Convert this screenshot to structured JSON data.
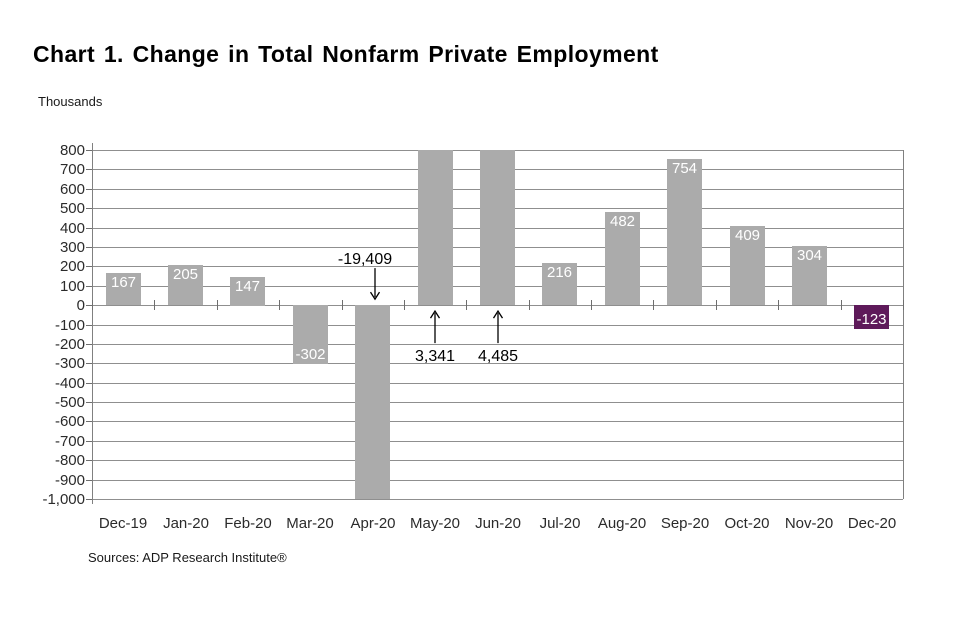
{
  "header": {
    "title": "Chart 1. Change in Total Nonfarm Private Employment",
    "units_label": "Thousands"
  },
  "footer": {
    "source": "Sources: ADP Research Institute®"
  },
  "chart_data": {
    "type": "bar",
    "title": "Chart 1. Change in Total Nonfarm Private Employment",
    "xlabel": "",
    "ylabel": "Thousands",
    "ylim": [
      -1000,
      800
    ],
    "ytick_step": 100,
    "grid": true,
    "legend": false,
    "categories": [
      "Dec-19",
      "Jan-20",
      "Feb-20",
      "Mar-20",
      "Apr-20",
      "May-20",
      "Jun-20",
      "Jul-20",
      "Aug-20",
      "Sep-20",
      "Oct-20",
      "Nov-20",
      "Dec-20"
    ],
    "values": [
      167,
      205,
      147,
      -302,
      -19409,
      3341,
      4485,
      216,
      482,
      754,
      409,
      304,
      -123
    ],
    "bar_display_labels": [
      "167",
      "205",
      "147",
      "-302",
      "-19,409",
      "3,341",
      "4,485",
      "216",
      "482",
      "754",
      "409",
      "304",
      "-123"
    ],
    "highlight_index": 12,
    "clipped_annotations": [
      {
        "index": 4,
        "label": "-19,409",
        "direction": "down"
      },
      {
        "index": 5,
        "label": "3,341",
        "direction": "up"
      },
      {
        "index": 6,
        "label": "4,485",
        "direction": "up"
      }
    ],
    "colors": {
      "bar": "#ABABAB",
      "highlight_bar": "#5E1A5A",
      "bar_label_text": "#FFFFFF",
      "grid": "#8F8F8F",
      "axis": "#808080",
      "tick": "#6E6E6E",
      "axis_text": "#2B2B2B",
      "annotation": "#000000"
    }
  }
}
